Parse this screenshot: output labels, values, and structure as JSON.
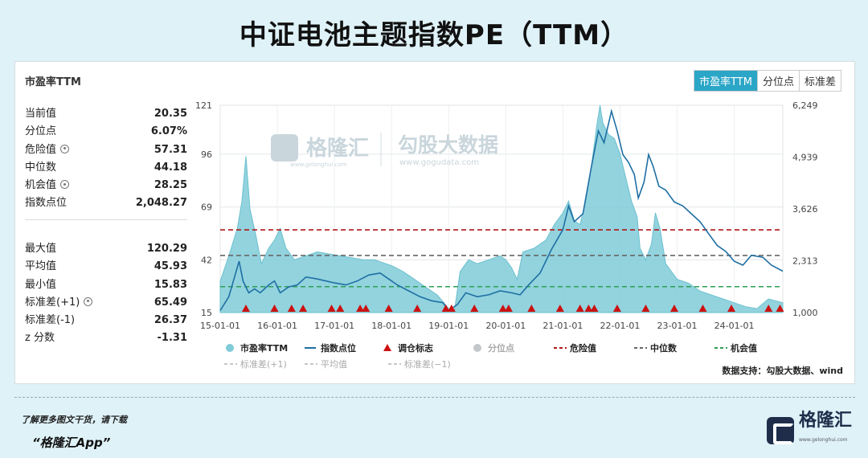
{
  "page_title": "中证电池主题指数PE（TTM）",
  "panel_title": "市盈率TTM",
  "tabs": [
    "市盈率TTM",
    "分位点",
    "标准差"
  ],
  "stats_top": [
    {
      "label": "当前值",
      "value": "20.35",
      "gear": false
    },
    {
      "label": "分位点",
      "value": "6.07%",
      "gear": false
    },
    {
      "label": "危险值",
      "value": "57.31",
      "gear": true
    },
    {
      "label": "中位数",
      "value": "44.18",
      "gear": false
    },
    {
      "label": "机会值",
      "value": "28.25",
      "gear": true
    },
    {
      "label": "指数点位",
      "value": "2,048.27",
      "gear": false
    }
  ],
  "stats_bottom": [
    {
      "label": "最大值",
      "value": "120.29",
      "gear": false
    },
    {
      "label": "平均值",
      "value": "45.93",
      "gear": false
    },
    {
      "label": "最小值",
      "value": "15.83",
      "gear": false
    },
    {
      "label": "标准差(+1)",
      "value": "65.49",
      "gear": true
    },
    {
      "label": "标准差(-1)",
      "value": "26.37",
      "gear": false
    },
    {
      "label": "z 分数",
      "value": "-1.31",
      "gear": false
    }
  ],
  "watermark": {
    "brand": "格隆汇",
    "brand_url": "www.gelonghui.com",
    "data_brand": "勾股大数据",
    "data_url": "www.gogudata.com"
  },
  "source": "数据支持：勾股大数据、wind",
  "footer": {
    "line1": "了解更多图文干货，请下载",
    "line2": "“格隆汇App”",
    "logo_text": "格隆汇",
    "logo_url": "www.gelonghui.com"
  },
  "colors": {
    "pe_fill": "#7fcbd8",
    "index_line": "#1f6fa3",
    "marker": "#cc1111",
    "danger": "#b01818",
    "median": "#666666",
    "opportunity": "#2e9e55",
    "tab_active": "#2ba6c7"
  },
  "chart_data": {
    "type": "area",
    "x_ticks": [
      "15-01-01",
      "16-01-01",
      "17-01-01",
      "18-01-01",
      "19-01-01",
      "20-01-01",
      "21-01-01",
      "22-01-01",
      "23-01-01",
      "24-01-01"
    ],
    "y_left_ticks": [
      15,
      42,
      69,
      96,
      121
    ],
    "y_left_tick_labels": [
      "15",
      "42",
      "69",
      "96",
      "121"
    ],
    "y_left_range": [
      15,
      121
    ],
    "y_right_ticks": [
      1000,
      2313,
      3626,
      4939,
      6249
    ],
    "y_right_tick_labels": [
      "1,000",
      "2,313",
      "3,626",
      "4,939",
      "6,249"
    ],
    "y_right_range": [
      1000,
      6249
    ],
    "x_range": [
      2015.0,
      2024.85
    ],
    "reference_lines": [
      {
        "name": "危险值",
        "value": 57.31,
        "style": "dashed",
        "color": "#b01818"
      },
      {
        "name": "中位数",
        "value": 44.18,
        "style": "dashed",
        "color": "#666666"
      },
      {
        "name": "机会值",
        "value": 28.25,
        "style": "dashed",
        "color": "#2e9e55"
      }
    ],
    "series": [
      {
        "name": "市盈率TTM",
        "axis": "left",
        "kind": "area",
        "points": [
          [
            2015.0,
            31
          ],
          [
            2015.15,
            44
          ],
          [
            2015.3,
            58
          ],
          [
            2015.38,
            72
          ],
          [
            2015.45,
            95
          ],
          [
            2015.52,
            68
          ],
          [
            2015.62,
            55
          ],
          [
            2015.72,
            40
          ],
          [
            2015.85,
            48
          ],
          [
            2015.95,
            52
          ],
          [
            2016.05,
            58
          ],
          [
            2016.15,
            48
          ],
          [
            2016.3,
            42
          ],
          [
            2016.5,
            44
          ],
          [
            2016.7,
            46
          ],
          [
            2016.9,
            45
          ],
          [
            2017.1,
            44
          ],
          [
            2017.3,
            43
          ],
          [
            2017.5,
            42
          ],
          [
            2017.7,
            42
          ],
          [
            2017.9,
            40
          ],
          [
            2018.0,
            39
          ],
          [
            2018.2,
            36
          ],
          [
            2018.4,
            32
          ],
          [
            2018.6,
            28
          ],
          [
            2018.8,
            24
          ],
          [
            2019.0,
            17
          ],
          [
            2019.1,
            16
          ],
          [
            2019.2,
            36
          ],
          [
            2019.35,
            42
          ],
          [
            2019.5,
            40
          ],
          [
            2019.7,
            42
          ],
          [
            2019.9,
            44
          ],
          [
            2020.0,
            42
          ],
          [
            2020.1,
            38
          ],
          [
            2020.2,
            32
          ],
          [
            2020.3,
            46
          ],
          [
            2020.5,
            48
          ],
          [
            2020.7,
            52
          ],
          [
            2020.85,
            60
          ],
          [
            2021.0,
            66
          ],
          [
            2021.1,
            72
          ],
          [
            2021.2,
            62
          ],
          [
            2021.3,
            60
          ],
          [
            2021.4,
            72
          ],
          [
            2021.5,
            90
          ],
          [
            2021.6,
            112
          ],
          [
            2021.65,
            121
          ],
          [
            2021.7,
            112
          ],
          [
            2021.8,
            106
          ],
          [
            2021.9,
            104
          ],
          [
            2022.0,
            96
          ],
          [
            2022.1,
            84
          ],
          [
            2022.2,
            72
          ],
          [
            2022.3,
            64
          ],
          [
            2022.35,
            48
          ],
          [
            2022.45,
            42
          ],
          [
            2022.55,
            50
          ],
          [
            2022.62,
            66
          ],
          [
            2022.7,
            58
          ],
          [
            2022.8,
            40
          ],
          [
            2022.9,
            36
          ],
          [
            2023.0,
            32
          ],
          [
            2023.2,
            30
          ],
          [
            2023.4,
            26
          ],
          [
            2023.6,
            24
          ],
          [
            2023.8,
            22
          ],
          [
            2024.0,
            20
          ],
          [
            2024.2,
            18
          ],
          [
            2024.4,
            17
          ],
          [
            2024.6,
            22
          ],
          [
            2024.85,
            20
          ]
        ]
      },
      {
        "name": "指数点位",
        "axis": "right",
        "kind": "line",
        "points": [
          [
            2015.0,
            1050
          ],
          [
            2015.15,
            1400
          ],
          [
            2015.25,
            1900
          ],
          [
            2015.33,
            2300
          ],
          [
            2015.4,
            1800
          ],
          [
            2015.5,
            1500
          ],
          [
            2015.6,
            1600
          ],
          [
            2015.7,
            1500
          ],
          [
            2015.85,
            1700
          ],
          [
            2015.95,
            1800
          ],
          [
            2016.05,
            1500
          ],
          [
            2016.2,
            1650
          ],
          [
            2016.35,
            1700
          ],
          [
            2016.5,
            1900
          ],
          [
            2016.7,
            1850
          ],
          [
            2016.85,
            1800
          ],
          [
            2017.0,
            1750
          ],
          [
            2017.2,
            1700
          ],
          [
            2017.4,
            1800
          ],
          [
            2017.6,
            1950
          ],
          [
            2017.8,
            2000
          ],
          [
            2017.95,
            1850
          ],
          [
            2018.1,
            1700
          ],
          [
            2018.3,
            1550
          ],
          [
            2018.5,
            1400
          ],
          [
            2018.7,
            1300
          ],
          [
            2018.9,
            1250
          ],
          [
            2019.0,
            1050
          ],
          [
            2019.15,
            1200
          ],
          [
            2019.3,
            1500
          ],
          [
            2019.5,
            1400
          ],
          [
            2019.7,
            1450
          ],
          [
            2019.9,
            1550
          ],
          [
            2020.1,
            1500
          ],
          [
            2020.25,
            1450
          ],
          [
            2020.4,
            1700
          ],
          [
            2020.6,
            2000
          ],
          [
            2020.8,
            2600
          ],
          [
            2021.0,
            3100
          ],
          [
            2021.1,
            3700
          ],
          [
            2021.2,
            3300
          ],
          [
            2021.35,
            3500
          ],
          [
            2021.5,
            4700
          ],
          [
            2021.62,
            5600
          ],
          [
            2021.72,
            5300
          ],
          [
            2021.85,
            6100
          ],
          [
            2021.95,
            5600
          ],
          [
            2022.05,
            5000
          ],
          [
            2022.15,
            4800
          ],
          [
            2022.25,
            4500
          ],
          [
            2022.32,
            3900
          ],
          [
            2022.42,
            4300
          ],
          [
            2022.5,
            5000
          ],
          [
            2022.58,
            4700
          ],
          [
            2022.68,
            4200
          ],
          [
            2022.8,
            4100
          ],
          [
            2022.95,
            3800
          ],
          [
            2023.1,
            3700
          ],
          [
            2023.25,
            3500
          ],
          [
            2023.4,
            3300
          ],
          [
            2023.55,
            3000
          ],
          [
            2023.7,
            2700
          ],
          [
            2023.85,
            2550
          ],
          [
            2024.0,
            2300
          ],
          [
            2024.15,
            2200
          ],
          [
            2024.3,
            2450
          ],
          [
            2024.5,
            2400
          ],
          [
            2024.65,
            2200
          ],
          [
            2024.85,
            2048
          ]
        ]
      },
      {
        "name": "调仓标志",
        "axis": "left",
        "kind": "marker",
        "x": [
          2015.45,
          2015.95,
          2016.25,
          2016.45,
          2016.95,
          2017.1,
          2017.45,
          2017.55,
          2017.95,
          2018.45,
          2018.95,
          2019.05,
          2019.45,
          2019.95,
          2020.05,
          2020.45,
          2020.95,
          2021.3,
          2021.45,
          2021.55,
          2021.95,
          2022.45,
          2022.95,
          2023.45,
          2023.95,
          2024.6,
          2024.8
        ]
      }
    ],
    "legend": {
      "row1": [
        "市盈率TTM",
        "指数点位",
        "调仓标志",
        "分位点",
        "危险值",
        "中位数",
        "机会值"
      ],
      "row2": [
        "标准差(+1)",
        "平均值",
        "标准差(−1)"
      ],
      "placement": "bottom"
    }
  }
}
